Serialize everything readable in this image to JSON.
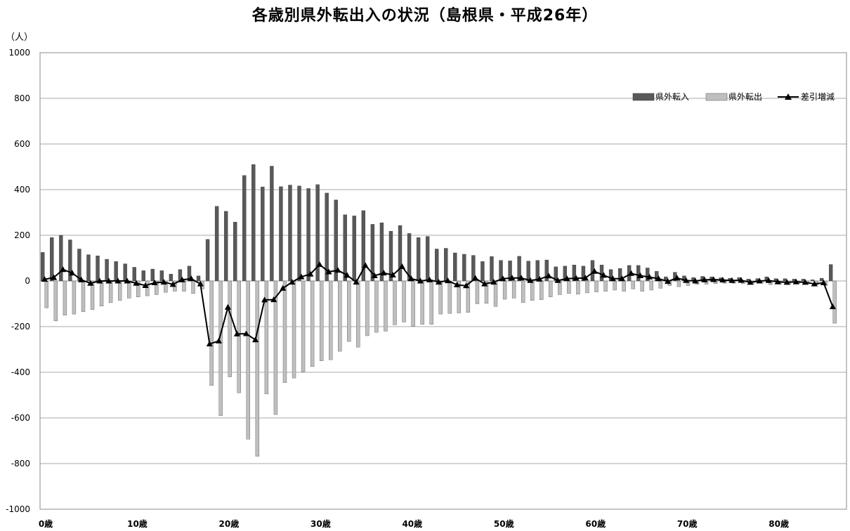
{
  "chart_data": {
    "type": "bar",
    "title": "各歳別県外転出入の状況（島根県・平成26年）",
    "ylabel": "（人）",
    "xlabel": "",
    "ylim": [
      -1000,
      1000
    ],
    "yticks": [
      "1000",
      "800",
      "600",
      "400",
      "200",
      "0",
      "-200",
      "-400",
      "-600",
      "-800",
      "-1000"
    ],
    "ytick_values": [
      1000,
      800,
      600,
      400,
      200,
      0,
      -200,
      -400,
      -600,
      -800,
      -1000
    ],
    "x_tick_labels": [
      "0歳",
      "10歳",
      "20歳",
      "30歳",
      "40歳",
      "50歳",
      "60歳",
      "70歳",
      "80歳"
    ],
    "x_tick_index": [
      0,
      10,
      20,
      30,
      40,
      50,
      60,
      70,
      80
    ],
    "legend_position": "top-right",
    "grid": true,
    "x": [
      0,
      1,
      2,
      3,
      4,
      5,
      6,
      7,
      8,
      9,
      10,
      11,
      12,
      13,
      14,
      15,
      16,
      17,
      18,
      19,
      20,
      21,
      22,
      23,
      24,
      25,
      26,
      27,
      28,
      29,
      30,
      31,
      32,
      33,
      34,
      35,
      36,
      37,
      38,
      39,
      40,
      41,
      42,
      43,
      44,
      45,
      46,
      47,
      48,
      49,
      50,
      51,
      52,
      53,
      54,
      55,
      56,
      57,
      58,
      59,
      60,
      61,
      62,
      63,
      64,
      65,
      66,
      67,
      68,
      69,
      70,
      71,
      72,
      73,
      74,
      75,
      76,
      77,
      78,
      79,
      80,
      81,
      82,
      83,
      84,
      85,
      86,
      87
    ],
    "series": [
      {
        "name": "県外転入",
        "kind": "bar",
        "color": "#595959",
        "values": [
          125,
          190,
          200,
          180,
          140,
          115,
          110,
          95,
          85,
          75,
          60,
          45,
          52,
          45,
          30,
          50,
          65,
          22,
          182,
          327,
          305,
          258,
          462,
          510,
          412,
          503,
          413,
          420,
          416,
          405,
          422,
          385,
          355,
          290,
          285,
          308,
          248,
          255,
          218,
          243,
          208,
          190,
          195,
          140,
          143,
          123,
          117,
          112,
          85,
          107,
          90,
          88,
          108,
          87,
          90,
          92,
          62,
          65,
          70,
          65,
          90,
          70,
          50,
          55,
          68,
          68,
          57,
          42,
          18,
          38,
          22,
          15,
          20,
          18,
          14,
          12,
          15,
          8,
          10,
          18,
          10,
          10,
          8,
          8,
          5,
          12,
          72,
          0
        ]
      },
      {
        "name": "県外転出",
        "kind": "bar",
        "color": "#bfbfbf",
        "values": [
          -118,
          -175,
          -150,
          -145,
          -135,
          -125,
          -110,
          -95,
          -85,
          -75,
          -70,
          -65,
          -60,
          -50,
          -45,
          -45,
          -55,
          -35,
          -458,
          -590,
          -420,
          -490,
          -693,
          -768,
          -495,
          -585,
          -445,
          -425,
          -398,
          -375,
          -350,
          -345,
          -308,
          -265,
          -290,
          -240,
          -225,
          -220,
          -192,
          -180,
          -198,
          -190,
          -190,
          -145,
          -142,
          -140,
          -138,
          -100,
          -98,
          -112,
          -80,
          -75,
          -95,
          -85,
          -82,
          -70,
          -60,
          -55,
          -58,
          -52,
          -48,
          -45,
          -40,
          -45,
          -35,
          -45,
          -40,
          -32,
          -20,
          -25,
          -20,
          -15,
          -15,
          -12,
          -10,
          -10,
          -12,
          -14,
          -10,
          -16,
          -14,
          -16,
          -12,
          -14,
          -18,
          -20,
          -185,
          0
        ]
      },
      {
        "name": "差引増減",
        "kind": "line",
        "color": "#000000",
        "values": [
          7,
          15,
          50,
          35,
          5,
          -10,
          0,
          0,
          0,
          0,
          -10,
          -20,
          -8,
          -5,
          -15,
          5,
          10,
          -13,
          -276,
          -263,
          -115,
          -232,
          -231,
          -258,
          -83,
          -82,
          -32,
          -5,
          18,
          30,
          72,
          40,
          47,
          25,
          -5,
          68,
          23,
          35,
          26,
          63,
          10,
          0,
          5,
          -5,
          1,
          -17,
          -21,
          12,
          -13,
          -5,
          10,
          13,
          13,
          2,
          8,
          22,
          2,
          10,
          12,
          13,
          42,
          25,
          10,
          10,
          33,
          23,
          17,
          10,
          -2,
          13,
          2,
          0,
          5,
          6,
          4,
          2,
          3,
          -6,
          0,
          2,
          -4,
          -6,
          -4,
          -6,
          -13,
          -8,
          -113,
          0
        ]
      }
    ]
  }
}
